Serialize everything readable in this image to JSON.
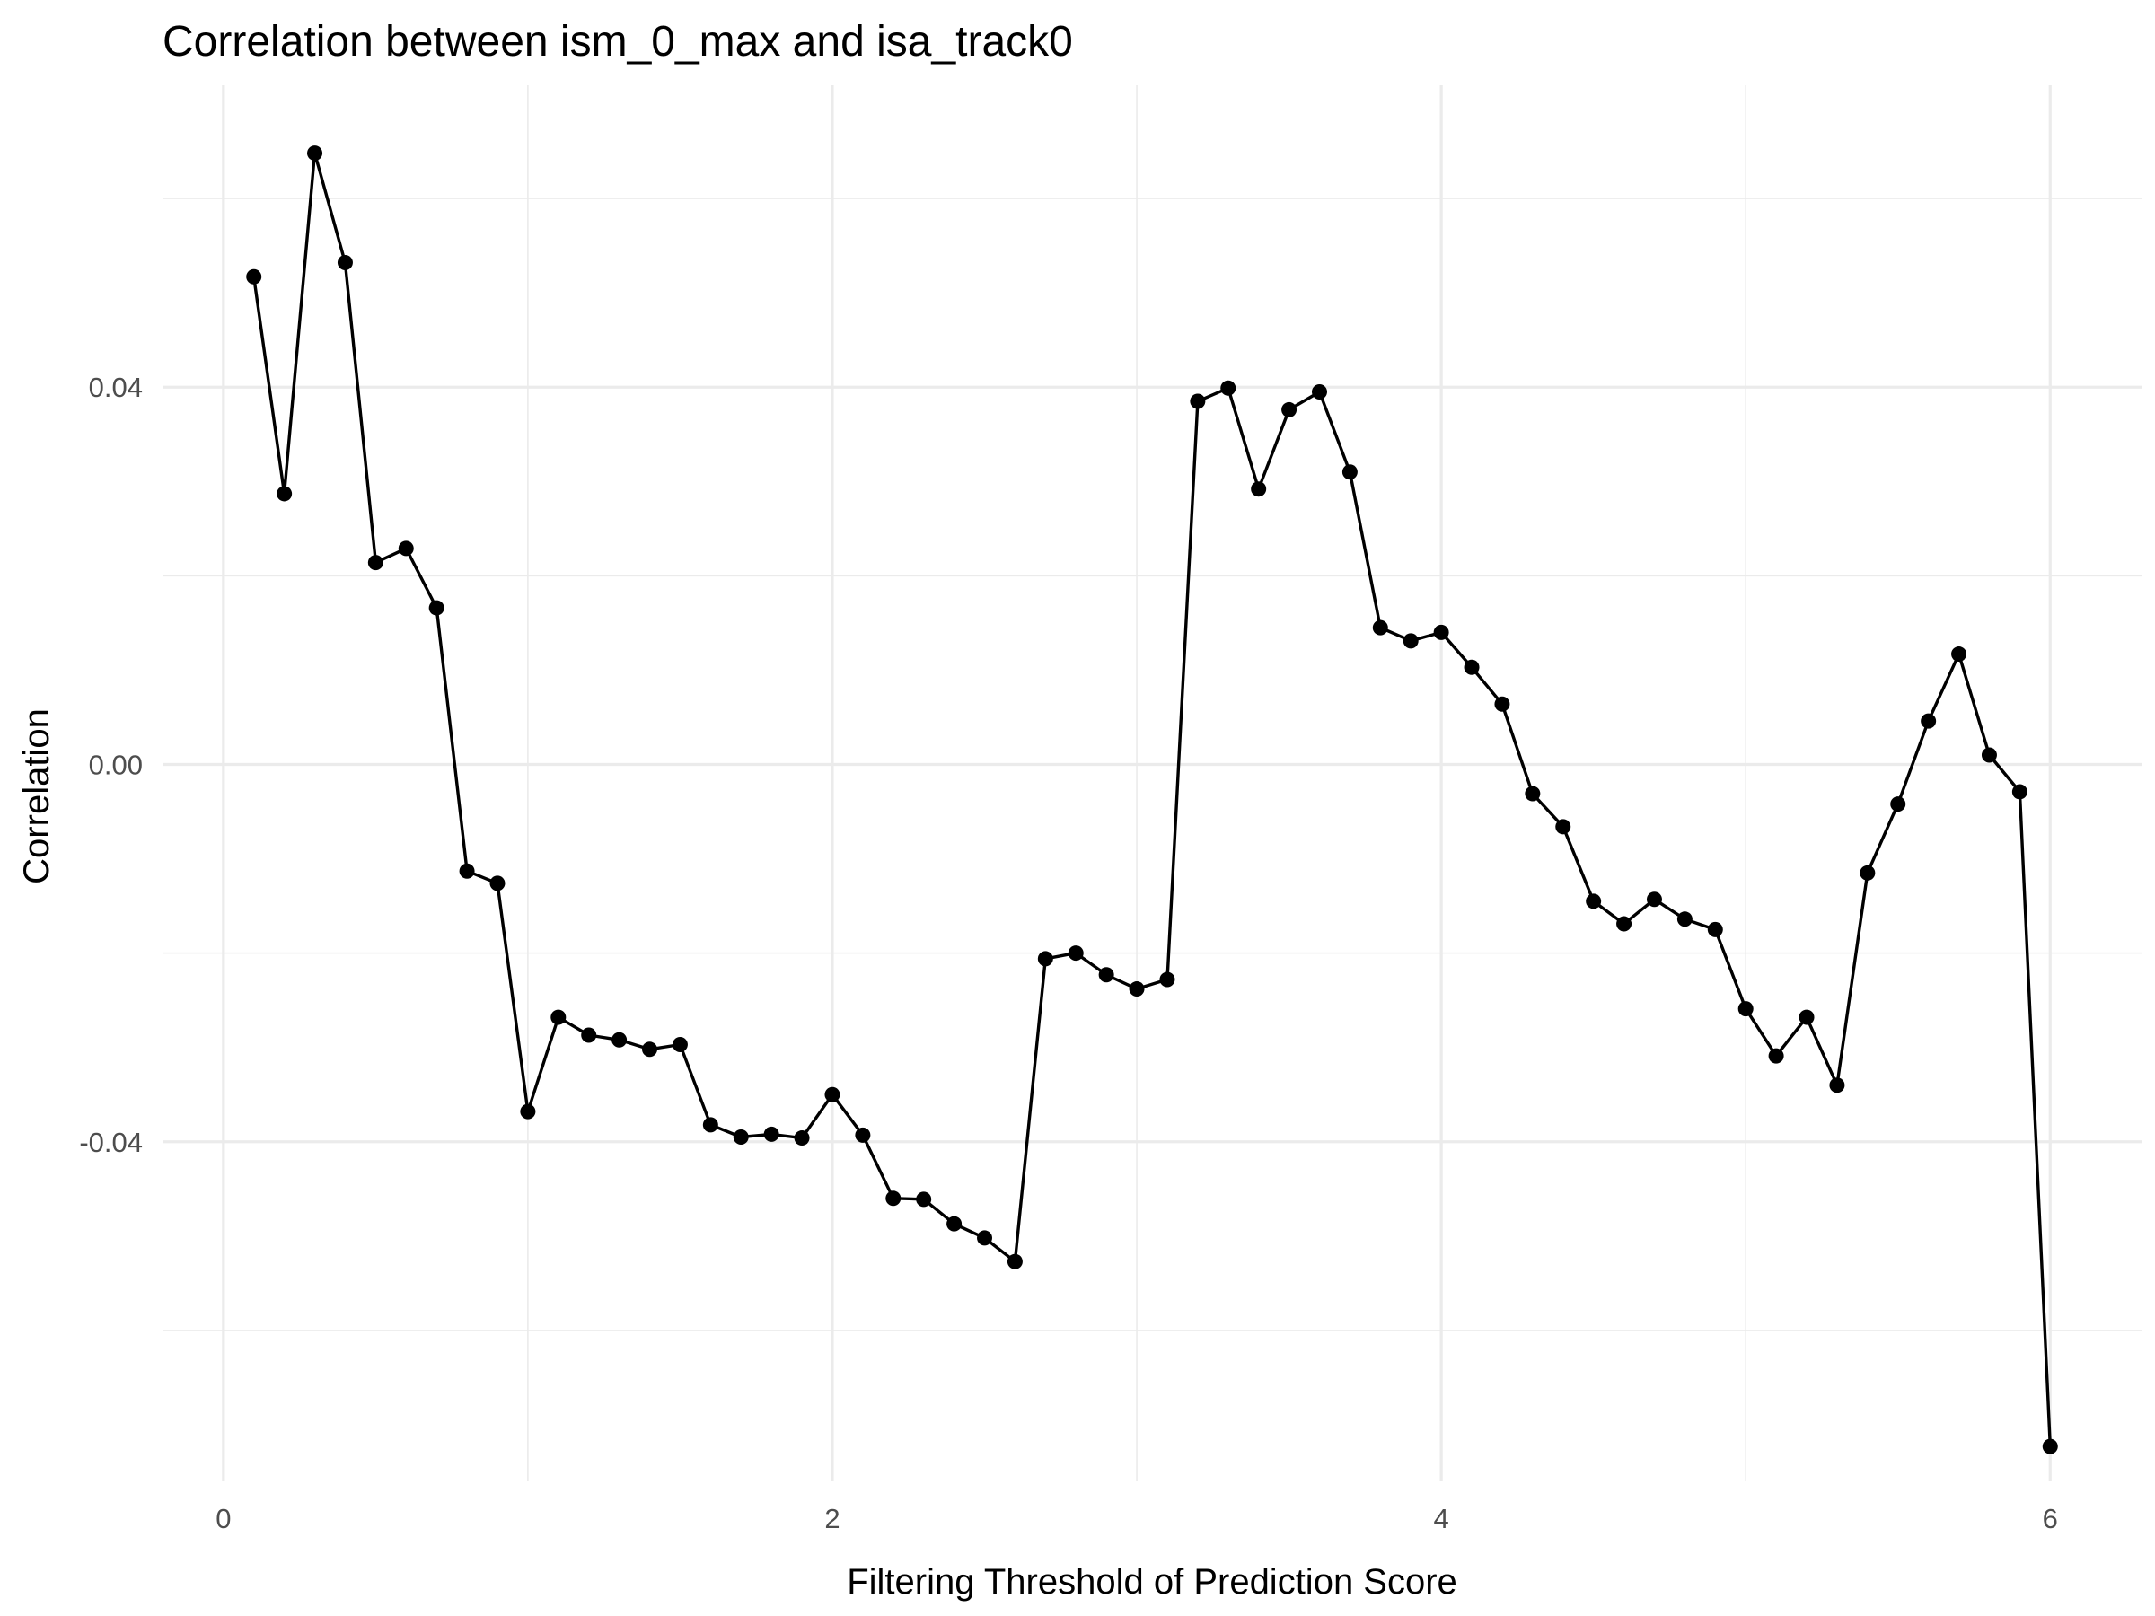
{
  "chart_data": {
    "type": "line",
    "title": "Correlation between ism_0_max and isa_track0",
    "xlabel": "Filtering Threshold of Prediction Score",
    "ylabel": "Correlation",
    "xlim": [
      -0.2,
      6.3
    ],
    "ylim": [
      -0.076,
      0.072
    ],
    "x_ticks": [
      0,
      2,
      4,
      6
    ],
    "x_tick_labels": [
      "0",
      "2",
      "4",
      "6"
    ],
    "x_minor_ticks": [
      1,
      3,
      5
    ],
    "y_ticks": [
      -0.04,
      0.0,
      0.04
    ],
    "y_tick_labels": [
      "-0.04",
      "0.00",
      "0.04"
    ],
    "y_minor_ticks": [
      -0.06,
      -0.02,
      0.02,
      0.06
    ],
    "grid": true,
    "legend": "none",
    "colors": {
      "line": "#000000",
      "grid": "#ebebeb",
      "background": "#ffffff"
    },
    "series": [
      {
        "x": [
          0.1,
          0.2,
          0.3,
          0.4,
          0.5,
          0.6,
          0.7,
          0.8,
          0.9,
          1.0,
          1.1,
          1.2,
          1.3,
          1.4,
          1.5,
          1.6,
          1.7,
          1.8,
          1.9,
          2.0,
          2.1,
          2.2,
          2.3,
          2.4,
          2.5,
          2.6,
          2.7,
          2.8,
          2.9,
          3.0,
          3.1,
          3.2,
          3.3,
          3.4,
          3.5,
          3.6,
          3.7,
          3.8,
          3.9,
          4.0,
          4.1,
          4.2,
          4.3,
          4.4,
          4.5,
          4.6,
          4.7,
          4.8,
          4.9,
          5.0,
          5.1,
          5.2,
          5.3,
          5.4,
          5.5,
          5.6,
          5.7,
          5.8,
          5.9,
          6.0
        ],
        "y": [
          0.0517,
          0.0287,
          0.0648,
          0.0532,
          0.0214,
          0.0229,
          0.0166,
          -0.0113,
          -0.0126,
          -0.0368,
          -0.0268,
          -0.0287,
          -0.0292,
          -0.0302,
          -0.0297,
          -0.0382,
          -0.0395,
          -0.0392,
          -0.0396,
          -0.035,
          -0.0393,
          -0.046,
          -0.0461,
          -0.0487,
          -0.0502,
          -0.0527,
          -0.0206,
          -0.02,
          -0.0223,
          -0.0238,
          -0.0228,
          0.0385,
          0.0399,
          0.0292,
          0.0376,
          0.0395,
          0.031,
          0.0145,
          0.0131,
          0.014,
          0.0103,
          0.0064,
          -0.0031,
          -0.0066,
          -0.0145,
          -0.0169,
          -0.0143,
          -0.0164,
          -0.0175,
          -0.0259,
          -0.0309,
          -0.0268,
          -0.034,
          -0.0115,
          -0.0042,
          0.0046,
          0.0117,
          0.001,
          -0.0029,
          -0.0723
        ]
      }
    ]
  }
}
